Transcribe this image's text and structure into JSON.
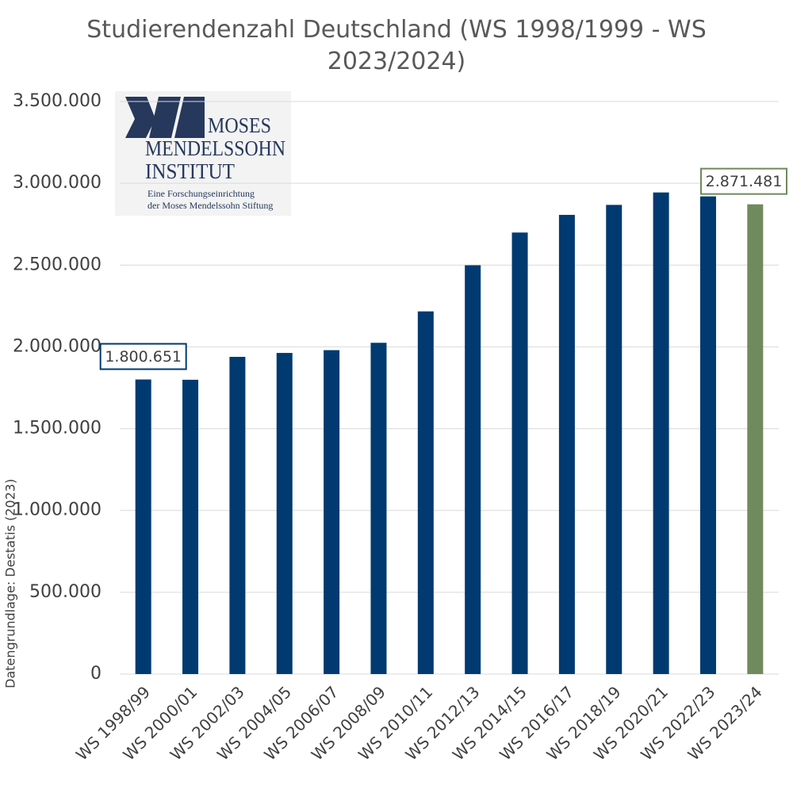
{
  "chart_data": {
    "type": "bar",
    "title": "Studierendenzahl Deutschland (WS 1998/1999 - WS 2023/2024)",
    "source": "Datengrundlage: Destatis (2023)",
    "categories": [
      "WS 1998/99",
      "WS 2000/01",
      "WS 2002/03",
      "WS 2004/05",
      "WS 2006/07",
      "WS 2008/09",
      "WS 2010/11",
      "WS 2012/13",
      "WS 2014/15",
      "WS 2016/17",
      "WS 2018/19",
      "WS 2020/21",
      "WS 2022/23",
      "WS 2023/24"
    ],
    "values": [
      1800651,
      1799000,
      1939000,
      1963000,
      1980000,
      2025000,
      2217000,
      2499000,
      2699000,
      2807000,
      2868000,
      2944000,
      2920000,
      2871481
    ],
    "value_labels": [
      "1.800.651",
      null,
      null,
      null,
      null,
      null,
      null,
      null,
      null,
      null,
      null,
      null,
      null,
      "2.871.481"
    ],
    "colors": [
      "#003a70",
      "#003a70",
      "#003a70",
      "#003a70",
      "#003a70",
      "#003a70",
      "#003a70",
      "#003a70",
      "#003a70",
      "#003a70",
      "#003a70",
      "#003a70",
      "#003a70",
      "#6f8a5c"
    ],
    "ylim": [
      0,
      3500000
    ],
    "yticks": [
      0,
      {
        "value": 500000,
        "label": "500.000"
      },
      {
        "value": 1000000,
        "label": "1.000.000"
      },
      {
        "value": 1500000,
        "label": "1.500.000"
      },
      {
        "value": 2000000,
        "label": "2.000.000"
      },
      {
        "value": 2500000,
        "label": "2.500.000"
      },
      {
        "value": 3000000,
        "label": "3.000.000"
      },
      {
        "value": 3500000,
        "label": "3.500.000"
      }
    ],
    "grid": true
  },
  "logo": {
    "name_lines": [
      "MOSES",
      "MENDELSSOHN",
      "INSTITUT"
    ],
    "tagline_lines": [
      "Eine Forschungseinrichtung",
      "der Moses Mendelssohn Stiftung"
    ]
  }
}
